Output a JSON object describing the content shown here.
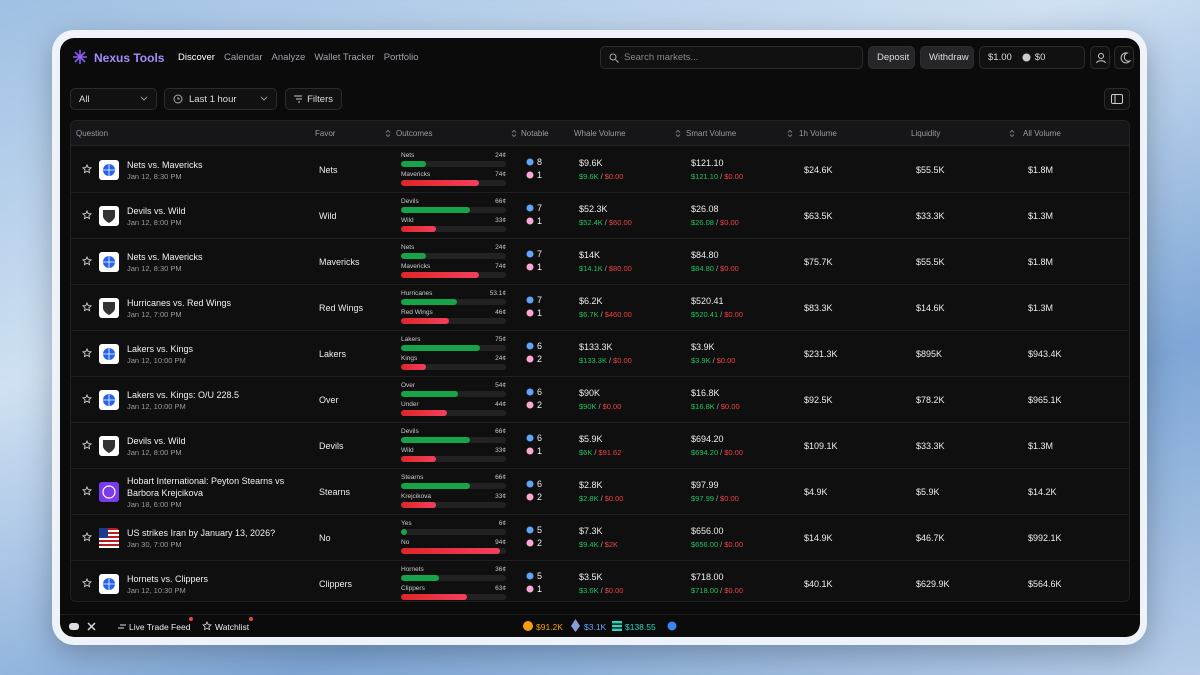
{
  "header": {
    "brand": "Nexus Tools",
    "nav": [
      "Discover",
      "Calendar",
      "Analyze",
      "Wallet Tracker",
      "Portfolio"
    ],
    "search_placeholder": "Search markets...",
    "deposit": "Deposit",
    "withdraw": "Withdraw",
    "cash_balance": "$1.00",
    "token_balance": "$0"
  },
  "toolbar": {
    "category": "All",
    "time_range": "Last 1 hour",
    "filters": "Filters"
  },
  "table": {
    "columns": [
      "Question",
      "Favor",
      "Outcomes",
      "Notable",
      "Whale Volume",
      "Smart Volume",
      "1h Volume",
      "Liquidity",
      "All Volume"
    ],
    "separator": "/",
    "rows": [
      {
        "question": "Nets vs. Mavericks",
        "date": "Jan 12, 8:30 PM",
        "league": "nba",
        "favor": "Nets",
        "outcomes": [
          {
            "name": "Nets",
            "value": 24,
            "label": "24¢"
          },
          {
            "name": "Mavericks",
            "value": 74,
            "label": "74¢"
          }
        ],
        "whales": 8,
        "smart": 1,
        "whale_volume": "$9.6K",
        "whale_buy": "$9.6K",
        "whale_sell": "$0.00",
        "smart_volume": "$121.10",
        "smart_buy": "$121.10",
        "smart_sell": "$0.00",
        "volume_1h": "$24.6K",
        "liquidity": "$55.5K",
        "all_volume": "$1.8M"
      },
      {
        "question": "Devils vs. Wild",
        "date": "Jan 12, 8:00 PM",
        "league": "nhl",
        "favor": "Wild",
        "outcomes": [
          {
            "name": "Devils",
            "value": 66,
            "label": "66¢"
          },
          {
            "name": "Wild",
            "value": 33,
            "label": "33¢"
          }
        ],
        "whales": 7,
        "smart": 1,
        "whale_volume": "$52.3K",
        "whale_buy": "$52.4K",
        "whale_sell": "$60.00",
        "smart_volume": "$26.08",
        "smart_buy": "$26.08",
        "smart_sell": "$0.00",
        "volume_1h": "$63.5K",
        "liquidity": "$33.3K",
        "all_volume": "$1.3M"
      },
      {
        "question": "Nets vs. Mavericks",
        "date": "Jan 12, 8:30 PM",
        "league": "nba",
        "favor": "Mavericks",
        "outcomes": [
          {
            "name": "Nets",
            "value": 24,
            "label": "24¢"
          },
          {
            "name": "Mavericks",
            "value": 74,
            "label": "74¢"
          }
        ],
        "whales": 7,
        "smart": 1,
        "whale_volume": "$14K",
        "whale_buy": "$14.1K",
        "whale_sell": "$80.00",
        "smart_volume": "$84.80",
        "smart_buy": "$84.80",
        "smart_sell": "$0.00",
        "volume_1h": "$75.7K",
        "liquidity": "$55.5K",
        "all_volume": "$1.8M"
      },
      {
        "question": "Hurricanes vs. Red Wings",
        "date": "Jan 12, 7:00 PM",
        "league": "nhl",
        "favor": "Red Wings",
        "outcomes": [
          {
            "name": "Hurricanes",
            "value": 53.1,
            "label": "53.1¢"
          },
          {
            "name": "Red Wings",
            "value": 46,
            "label": "46¢"
          }
        ],
        "whales": 7,
        "smart": 1,
        "whale_volume": "$6.2K",
        "whale_buy": "$6.7K",
        "whale_sell": "$460.00",
        "smart_volume": "$520.41",
        "smart_buy": "$520.41",
        "smart_sell": "$0.00",
        "volume_1h": "$83.3K",
        "liquidity": "$14.6K",
        "all_volume": "$1.3M"
      },
      {
        "question": "Lakers vs. Kings",
        "date": "Jan 12, 10:00 PM",
        "league": "nba",
        "favor": "Lakers",
        "outcomes": [
          {
            "name": "Lakers",
            "value": 75,
            "label": "75¢"
          },
          {
            "name": "Kings",
            "value": 24,
            "label": "24¢"
          }
        ],
        "whales": 6,
        "smart": 2,
        "whale_volume": "$133.3K",
        "whale_buy": "$133.3K",
        "whale_sell": "$0.00",
        "smart_volume": "$3.9K",
        "smart_buy": "$3.9K",
        "smart_sell": "$0.00",
        "volume_1h": "$231.3K",
        "liquidity": "$895K",
        "all_volume": "$943.4K"
      },
      {
        "question": "Lakers vs. Kings: O/U 228.5",
        "date": "Jan 12, 10:00 PM",
        "league": "nba",
        "favor": "Over",
        "outcomes": [
          {
            "name": "Over",
            "value": 54,
            "label": "54¢"
          },
          {
            "name": "Under",
            "value": 44,
            "label": "44¢"
          }
        ],
        "whales": 6,
        "smart": 2,
        "whale_volume": "$90K",
        "whale_buy": "$90K",
        "whale_sell": "$0.00",
        "smart_volume": "$16.8K",
        "smart_buy": "$16.8K",
        "smart_sell": "$0.00",
        "volume_1h": "$92.5K",
        "liquidity": "$78.2K",
        "all_volume": "$965.1K"
      },
      {
        "question": "Devils vs. Wild",
        "date": "Jan 12, 8:00 PM",
        "league": "nhl",
        "favor": "Devils",
        "outcomes": [
          {
            "name": "Devils",
            "value": 66,
            "label": "66¢"
          },
          {
            "name": "Wild",
            "value": 33,
            "label": "33¢"
          }
        ],
        "whales": 6,
        "smart": 1,
        "whale_volume": "$5.9K",
        "whale_buy": "$6K",
        "whale_sell": "$91.62",
        "smart_volume": "$694.20",
        "smart_buy": "$694.20",
        "smart_sell": "$0.00",
        "volume_1h": "$109.1K",
        "liquidity": "$33.3K",
        "all_volume": "$1.3M"
      },
      {
        "question": "Hobart International: Peyton Stearns vs Barbora Krejcikova",
        "date": "Jan 18, 6:00 PM",
        "league": "wta",
        "favor": "Stearns",
        "outcomes": [
          {
            "name": "Stearns",
            "value": 66,
            "label": "66¢"
          },
          {
            "name": "Krejcikova",
            "value": 33,
            "label": "33¢"
          }
        ],
        "whales": 6,
        "smart": 2,
        "whale_volume": "$2.8K",
        "whale_buy": "$2.8K",
        "whale_sell": "$0.00",
        "smart_volume": "$97.99",
        "smart_buy": "$97.99",
        "smart_sell": "$0.00",
        "volume_1h": "$4.9K",
        "liquidity": "$5.9K",
        "all_volume": "$14.2K"
      },
      {
        "question": "US strikes Iran by January 13, 2026?",
        "date": "Jan 30, 7:00 PM",
        "league": "flag",
        "favor": "No",
        "outcomes": [
          {
            "name": "Yes",
            "value": 6,
            "label": "6¢"
          },
          {
            "name": "No",
            "value": 94,
            "label": "94¢"
          }
        ],
        "whales": 5,
        "smart": 2,
        "whale_volume": "$7.3K",
        "whale_buy": "$9.4K",
        "whale_sell": "$2K",
        "smart_volume": "$656.00",
        "smart_buy": "$656.00",
        "smart_sell": "$0.00",
        "volume_1h": "$14.9K",
        "liquidity": "$46.7K",
        "all_volume": "$992.1K"
      },
      {
        "question": "Hornets vs. Clippers",
        "date": "Jan 12, 10:30 PM",
        "league": "nba",
        "favor": "Clippers",
        "outcomes": [
          {
            "name": "Hornets",
            "value": 36,
            "label": "36¢"
          },
          {
            "name": "Clippers",
            "value": 63,
            "label": "63¢"
          }
        ],
        "whales": 5,
        "smart": 1,
        "whale_volume": "$3.5K",
        "whale_buy": "$3.6K",
        "whale_sell": "$0.00",
        "smart_volume": "$718.00",
        "smart_buy": "$718.00",
        "smart_sell": "$0.00",
        "volume_1h": "$40.1K",
        "liquidity": "$629.9K",
        "all_volume": "$564.6K"
      }
    ]
  },
  "footer": {
    "live_feed": "Live Trade Feed",
    "watchlist": "Watchlist",
    "btc": "$91.2K",
    "eth": "$3.1K",
    "sol": "$138.55"
  }
}
